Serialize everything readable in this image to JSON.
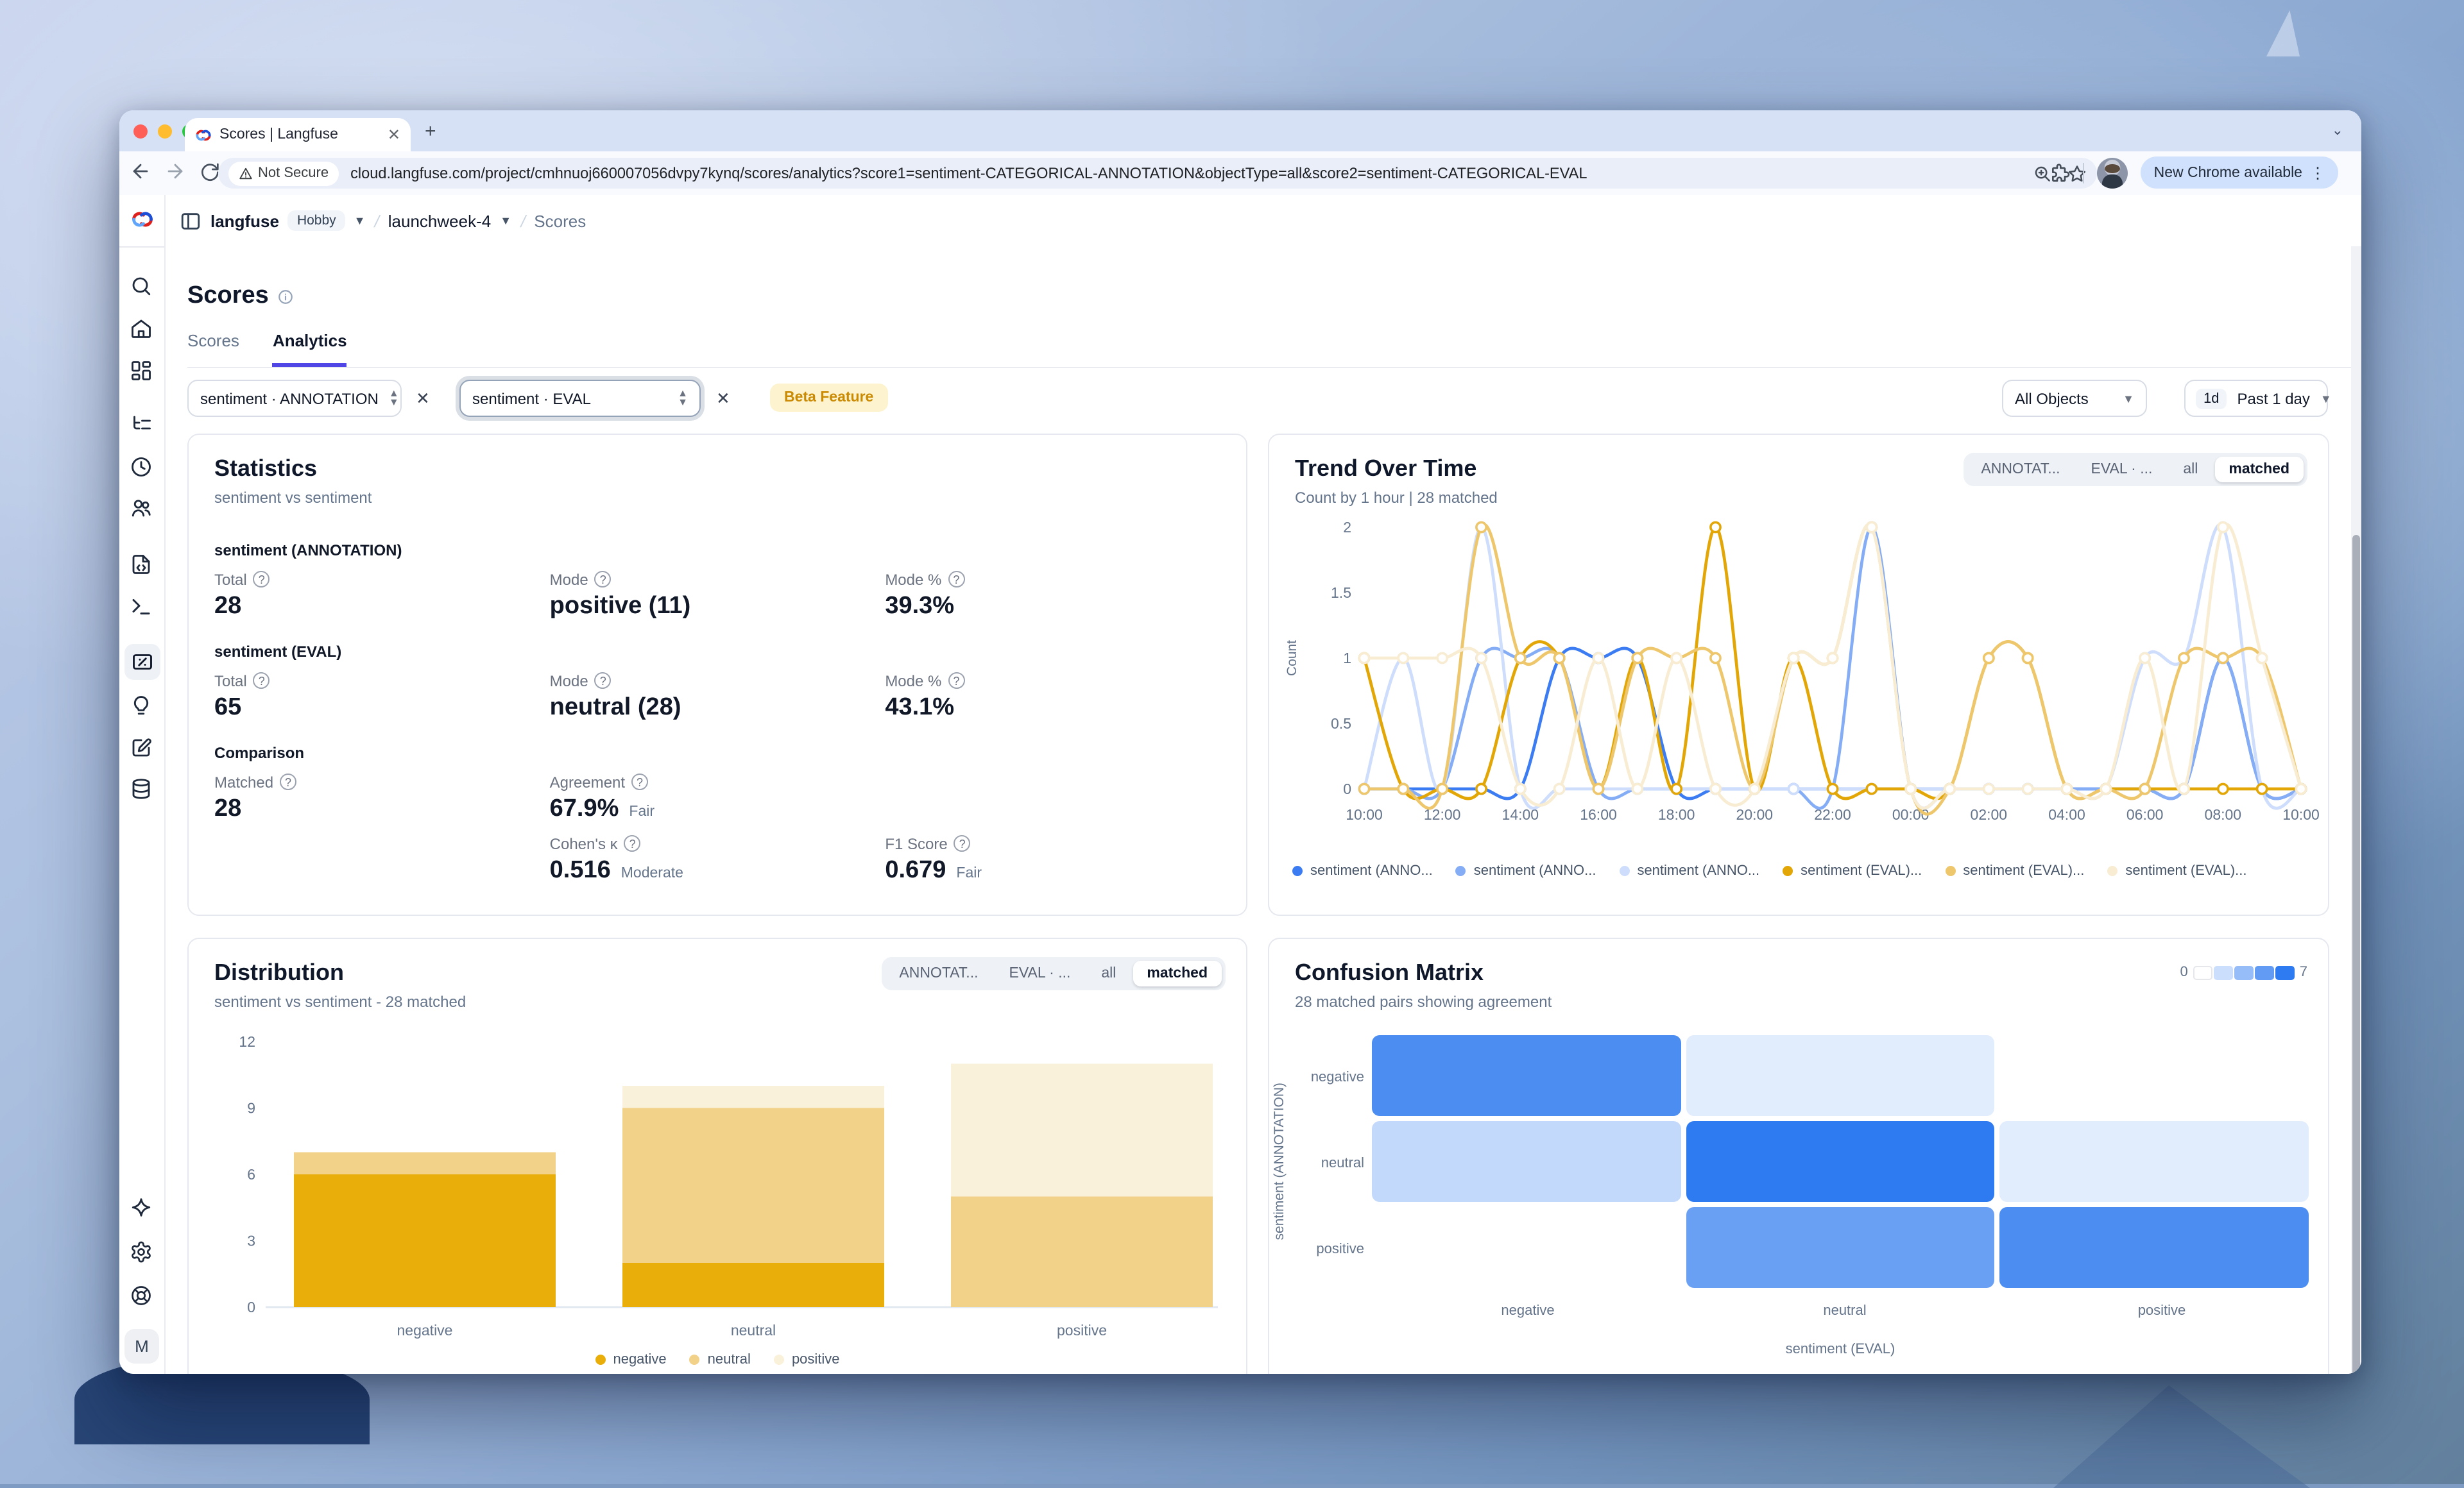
{
  "browser": {
    "tab": {
      "title": "Scores | Langfuse",
      "favicon": "langfuse-logo"
    },
    "address": {
      "security_label": "Not Secure",
      "url": "cloud.langfuse.com/project/cmhnuoj660007056dvpy7kynq/scores/analytics?score1=sentiment-CATEGORICAL-ANNOTATION&objectType=all&score2=sentiment-CATEGORICAL-EVAL"
    },
    "actions": {
      "update_pill": "New Chrome available"
    }
  },
  "app": {
    "breadcrumb": {
      "org": "langfuse",
      "plan": "Hobby",
      "project": "launchweek-4",
      "page": "Scores"
    },
    "page_title": "Scores",
    "tabs": [
      {
        "label": "Scores",
        "active": false
      },
      {
        "label": "Analytics",
        "active": true
      }
    ],
    "filters": {
      "score1": "sentiment · ANNOTATION",
      "score2": "sentiment · EVAL",
      "beta_badge": "Beta Feature",
      "object_select": "All Objects",
      "time_chip": "1d",
      "time_select": "Past 1 day"
    }
  },
  "statistics": {
    "title": "Statistics",
    "subtitle": "sentiment vs sentiment",
    "sections": [
      {
        "heading": "sentiment (ANNOTATION)",
        "rows": [
          [
            {
              "label": "Total",
              "value": "28"
            },
            {
              "label": "Mode",
              "value": "positive (11)"
            },
            {
              "label": "Mode %",
              "value": "39.3%"
            }
          ]
        ]
      },
      {
        "heading": "sentiment (EVAL)",
        "rows": [
          [
            {
              "label": "Total",
              "value": "65"
            },
            {
              "label": "Mode",
              "value": "neutral (28)"
            },
            {
              "label": "Mode %",
              "value": "43.1%"
            }
          ]
        ]
      },
      {
        "heading": "Comparison",
        "rows": [
          [
            {
              "label": "Matched",
              "value": "28"
            },
            {
              "label": "Agreement",
              "value": "67.9%",
              "qualifier": "Fair"
            },
            null
          ],
          [
            null,
            {
              "label": "Cohen's κ",
              "value": "0.516",
              "qualifier": "Moderate"
            },
            {
              "label": "F1 Score",
              "value": "0.679",
              "qualifier": "Fair"
            }
          ]
        ]
      }
    ]
  },
  "trend": {
    "title": "Trend Over Time",
    "subtitle": "Count by 1 hour | 28 matched",
    "toggle": {
      "options": [
        "ANNOTAT...",
        "EVAL · ...",
        "all",
        "matched"
      ],
      "active": "matched"
    }
  },
  "distribution": {
    "title": "Distribution",
    "subtitle": "sentiment vs sentiment - 28 matched",
    "toggle": {
      "options": [
        "ANNOTAT...",
        "EVAL · ...",
        "all",
        "matched"
      ],
      "active": "matched"
    }
  },
  "confusion": {
    "title": "Confusion Matrix",
    "subtitle": "28 matched pairs showing agreement",
    "legend": {
      "min": "0",
      "max": "7"
    }
  },
  "chart_data": [
    {
      "type": "line",
      "title": "Trend Over Time",
      "ylabel": "Count",
      "ylim": [
        0,
        2
      ],
      "yticks": [
        0,
        0.5,
        1,
        1.5,
        2
      ],
      "x": [
        "10:00",
        "11:00",
        "12:00",
        "13:00",
        "14:00",
        "15:00",
        "16:00",
        "17:00",
        "18:00",
        "19:00",
        "20:00",
        "21:00",
        "22:00",
        "23:00",
        "00:00",
        "01:00",
        "02:00",
        "03:00",
        "04:00",
        "05:00",
        "06:00",
        "07:00",
        "08:00",
        "09:00",
        "10:00"
      ],
      "x_tick_every": 2,
      "legend_position": "bottom",
      "series": [
        {
          "name": "sentiment (ANNO...",
          "color": "#3b7cf2",
          "values": [
            0,
            0,
            0,
            0,
            0,
            1,
            1,
            1,
            0,
            0,
            0,
            0,
            0,
            0,
            0,
            0,
            0,
            0,
            0,
            0,
            0,
            0,
            1,
            0,
            0
          ]
        },
        {
          "name": "sentiment (ANNO...",
          "color": "#85adf6",
          "values": [
            0,
            0,
            0,
            1,
            1,
            1,
            0,
            0,
            0,
            0,
            0,
            0,
            0,
            2,
            0,
            0,
            0,
            0,
            0,
            0,
            0,
            0,
            1,
            0,
            0
          ]
        },
        {
          "name": "sentiment (ANNO...",
          "color": "#cdddfb",
          "values": [
            0,
            1,
            0,
            2,
            0,
            0,
            0,
            0,
            0,
            0,
            0,
            0,
            0,
            0,
            0,
            0,
            0,
            0,
            0,
            0,
            1,
            1,
            2,
            0,
            0
          ]
        },
        {
          "name": "sentiment (EVAL)...",
          "color": "#e2a606",
          "values": [
            1,
            0,
            0,
            0,
            1,
            1,
            0,
            1,
            0,
            2,
            0,
            1,
            0,
            0,
            0,
            0,
            1,
            1,
            0,
            0,
            0,
            0,
            0,
            0,
            0
          ]
        },
        {
          "name": "sentiment (EVAL)...",
          "color": "#eec76c",
          "values": [
            0,
            0,
            0,
            2,
            1,
            1,
            0,
            1,
            1,
            1,
            0,
            1,
            1,
            2,
            0,
            0,
            1,
            1,
            0,
            0,
            0,
            1,
            1,
            1,
            0
          ]
        },
        {
          "name": "sentiment (EVAL)...",
          "color": "#f8ecd2",
          "values": [
            1,
            1,
            1,
            1,
            0,
            0,
            1,
            0,
            1,
            0,
            0,
            1,
            1,
            2,
            0,
            0,
            0,
            0,
            0,
            0,
            1,
            0,
            2,
            1,
            0
          ]
        }
      ]
    },
    {
      "type": "bar",
      "stacked": true,
      "title": "Distribution",
      "categories": [
        "negative",
        "neutral",
        "positive"
      ],
      "series": [
        {
          "name": "negative",
          "color": "#e9ae09",
          "values": [
            6,
            2,
            0
          ]
        },
        {
          "name": "neutral",
          "color": "#f2d189",
          "values": [
            1,
            7,
            5
          ]
        },
        {
          "name": "positive",
          "color": "#faf1da",
          "values": [
            0,
            1,
            6
          ]
        }
      ],
      "ylim": [
        0,
        12
      ],
      "yticks": [
        0,
        3,
        6,
        9,
        12
      ],
      "legend_position": "bottom"
    },
    {
      "type": "heatmap",
      "title": "Confusion Matrix",
      "row_axis_label": "sentiment (ANNOTATION)",
      "col_axis_label": "sentiment (EVAL)",
      "rows": [
        "negative",
        "neutral",
        "positive"
      ],
      "cols": [
        "negative",
        "neutral",
        "positive"
      ],
      "values": [
        [
          6,
          1,
          0
        ],
        [
          2,
          7,
          1
        ],
        [
          0,
          5,
          6
        ]
      ],
      "color_scale": {
        "min": 0,
        "max": 7,
        "from": "#ffffff",
        "to": "#2e7af0"
      }
    }
  ],
  "sidebar": {
    "items": [
      "search",
      "home",
      "dashboards",
      "tracing",
      "sessions",
      "users",
      "prompts",
      "playground",
      "scores",
      "evaluation",
      "annotation-queues",
      "datasets"
    ],
    "active": "scores",
    "footer": [
      "ask-ai",
      "settings",
      "support"
    ],
    "avatar_initial": "M"
  }
}
